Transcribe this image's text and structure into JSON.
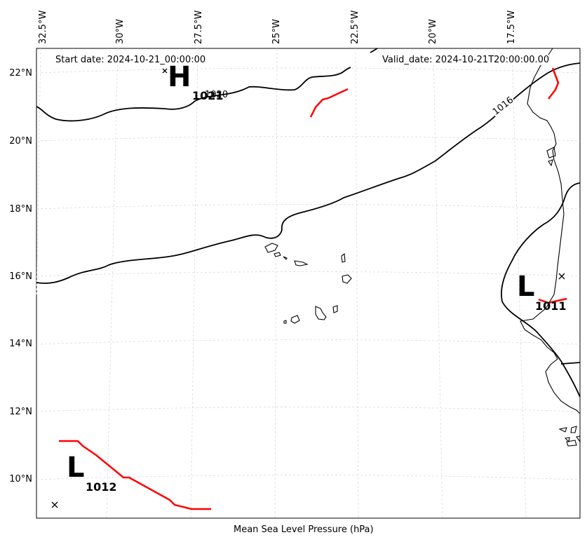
{
  "header": {
    "start_date": "Start date: 2024-10-21_00:00:00",
    "valid_date": "Valid_date: 2024-10-21T20:00:00.00"
  },
  "axes": {
    "longitude_ticks": [
      "32.5°W",
      "30°W",
      "27.5°W",
      "25°W",
      "22.5°W",
      "20°W",
      "17.5°W"
    ],
    "latitude_ticks": [
      "22°N",
      "20°N",
      "18°N",
      "16°N",
      "14°N",
      "12°N",
      "10°N"
    ]
  },
  "isobars": [
    {
      "value": "1016",
      "color": "#000000"
    },
    {
      "value": "1020",
      "color": "#000000"
    }
  ],
  "pressure_centers": [
    {
      "type": "H",
      "value": "1021"
    },
    {
      "type": "L",
      "value": "1011"
    },
    {
      "type": "L",
      "value": "1012"
    }
  ],
  "colors": {
    "isobar": "#000000",
    "front": "#ff0000",
    "coastline": "#000000",
    "grid": "#cccccc"
  },
  "caption": "Mean Sea Level Pressure (hPa)"
}
